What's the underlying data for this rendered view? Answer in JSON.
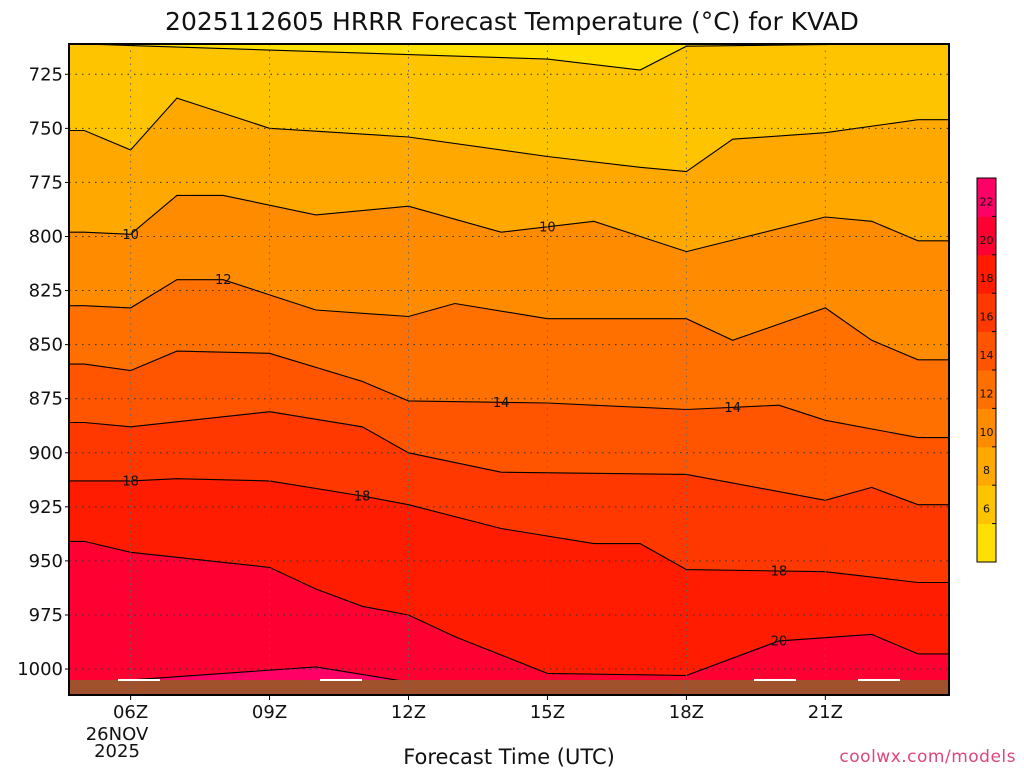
{
  "chart_data": {
    "type": "heatmap",
    "title": "2025112605 HRRR Forecast Temperature (°C) for KVAD",
    "xlabel": "Forecast Time (UTC)",
    "ylabel": "",
    "x_ticks": [
      "06Z",
      "09Z",
      "12Z",
      "15Z",
      "18Z",
      "21Z"
    ],
    "x_date_lines": [
      "26NOV",
      "2025"
    ],
    "y_ticks": [
      725,
      750,
      775,
      800,
      825,
      850,
      875,
      900,
      925,
      950,
      975,
      1000
    ],
    "y_range_hPa": [
      711,
      1012
    ],
    "y_inverted": true,
    "colorbar": {
      "levels": [
        4,
        6,
        8,
        10,
        12,
        14,
        16,
        18,
        20,
        22,
        24
      ],
      "tick_labels": [
        "6",
        "8",
        "10",
        "12",
        "14",
        "16",
        "18",
        "20",
        "22"
      ],
      "colors": [
        "#ffe000",
        "#ffc400",
        "#ffa800",
        "#ff8c00",
        "#ff7000",
        "#ff5400",
        "#ff3800",
        "#ff1c00",
        "#ff0033",
        "#ff0066"
      ]
    },
    "contour_labels": [
      {
        "value": "10",
        "time": "06Z"
      },
      {
        "value": "10",
        "time": "15Z"
      },
      {
        "value": "12",
        "time": "08Z"
      },
      {
        "value": "14",
        "time": "14Z"
      },
      {
        "value": "14",
        "time": "19Z"
      },
      {
        "value": "18",
        "time": "06Z"
      },
      {
        "value": "18",
        "time": "11Z"
      },
      {
        "value": "18",
        "time": "20Z"
      },
      {
        "value": "20",
        "time": "20Z"
      }
    ],
    "contours": [
      {
        "level": 6,
        "points": [
          [
            "05Z",
            711
          ],
          [
            "15Z",
            718
          ],
          [
            "17Z",
            723
          ],
          [
            "18Z",
            712
          ],
          [
            "22Z",
            711
          ]
        ]
      },
      {
        "level": 8,
        "points": [
          [
            "05Z",
            751
          ],
          [
            "06Z",
            760
          ],
          [
            "07Z",
            736
          ],
          [
            "09Z",
            750
          ],
          [
            "12Z",
            754
          ],
          [
            "15Z",
            763
          ],
          [
            "17Z",
            768
          ],
          [
            "18Z",
            770
          ],
          [
            "19Z",
            755
          ],
          [
            "21Z",
            752
          ],
          [
            "23Z",
            746
          ]
        ]
      },
      {
        "level": 10,
        "points": [
          [
            "05Z",
            798
          ],
          [
            "06Z",
            799
          ],
          [
            "07Z",
            781
          ],
          [
            "08Z",
            781
          ],
          [
            "10Z",
            790
          ],
          [
            "12Z",
            786
          ],
          [
            "14Z",
            798
          ],
          [
            "16Z",
            793
          ],
          [
            "18Z",
            807
          ],
          [
            "21Z",
            791
          ],
          [
            "22Z",
            793
          ],
          [
            "23Z",
            802
          ]
        ]
      },
      {
        "level": 12,
        "points": [
          [
            "05Z",
            832
          ],
          [
            "06Z",
            833
          ],
          [
            "07Z",
            820
          ],
          [
            "08Z",
            820
          ],
          [
            "10Z",
            834
          ],
          [
            "12Z",
            837
          ],
          [
            "13Z",
            831
          ],
          [
            "15Z",
            838
          ],
          [
            "18Z",
            838
          ],
          [
            "19Z",
            848
          ],
          [
            "21Z",
            833
          ],
          [
            "22Z",
            848
          ],
          [
            "23Z",
            857
          ]
        ]
      },
      {
        "level": 14,
        "points": [
          [
            "05Z",
            859
          ],
          [
            "06Z",
            862
          ],
          [
            "07Z",
            853
          ],
          [
            "09Z",
            854
          ],
          [
            "11Z",
            867
          ],
          [
            "12Z",
            876
          ],
          [
            "15Z",
            877
          ],
          [
            "18Z",
            880
          ],
          [
            "20Z",
            878
          ],
          [
            "21Z",
            885
          ],
          [
            "23Z",
            893
          ]
        ]
      },
      {
        "level": 16,
        "points": [
          [
            "05Z",
            886
          ],
          [
            "06Z",
            888
          ],
          [
            "09Z",
            881
          ],
          [
            "11Z",
            888
          ],
          [
            "12Z",
            900
          ],
          [
            "14Z",
            909
          ],
          [
            "18Z",
            910
          ],
          [
            "21Z",
            922
          ],
          [
            "22Z",
            916
          ],
          [
            "23Z",
            924
          ]
        ]
      },
      {
        "level": 18,
        "points": [
          [
            "05Z",
            913
          ],
          [
            "06Z",
            913
          ],
          [
            "07Z",
            912
          ],
          [
            "09Z",
            913
          ],
          [
            "11Z",
            920
          ],
          [
            "12Z",
            924
          ],
          [
            "14Z",
            935
          ],
          [
            "16Z",
            942
          ],
          [
            "17Z",
            942
          ],
          [
            "18Z",
            954
          ],
          [
            "21Z",
            955
          ],
          [
            "23Z",
            960
          ]
        ]
      },
      {
        "level": 20,
        "points": [
          [
            "05Z",
            941
          ],
          [
            "06Z",
            946
          ],
          [
            "09Z",
            953
          ],
          [
            "10Z",
            963
          ],
          [
            "11Z",
            971
          ],
          [
            "12Z",
            975
          ],
          [
            "13Z",
            985
          ],
          [
            "15Z",
            1002
          ],
          [
            "18Z",
            1003
          ],
          [
            "20Z",
            987
          ],
          [
            "22Z",
            984
          ],
          [
            "23Z",
            993
          ]
        ]
      },
      {
        "level": 22,
        "points": [
          [
            "05Z",
            1011
          ],
          [
            "06Z",
            1005
          ],
          [
            "08Z",
            1002
          ],
          [
            "10Z",
            999
          ],
          [
            "12Z",
            1006
          ],
          [
            "14Z",
            1012
          ],
          [
            "16Z",
            1012
          ],
          [
            "19Z",
            1011
          ],
          [
            "20Z",
            1008
          ],
          [
            "22Z",
            1008
          ],
          [
            "23Z",
            1012
          ]
        ]
      }
    ]
  },
  "credit": "coolwx.com/models"
}
